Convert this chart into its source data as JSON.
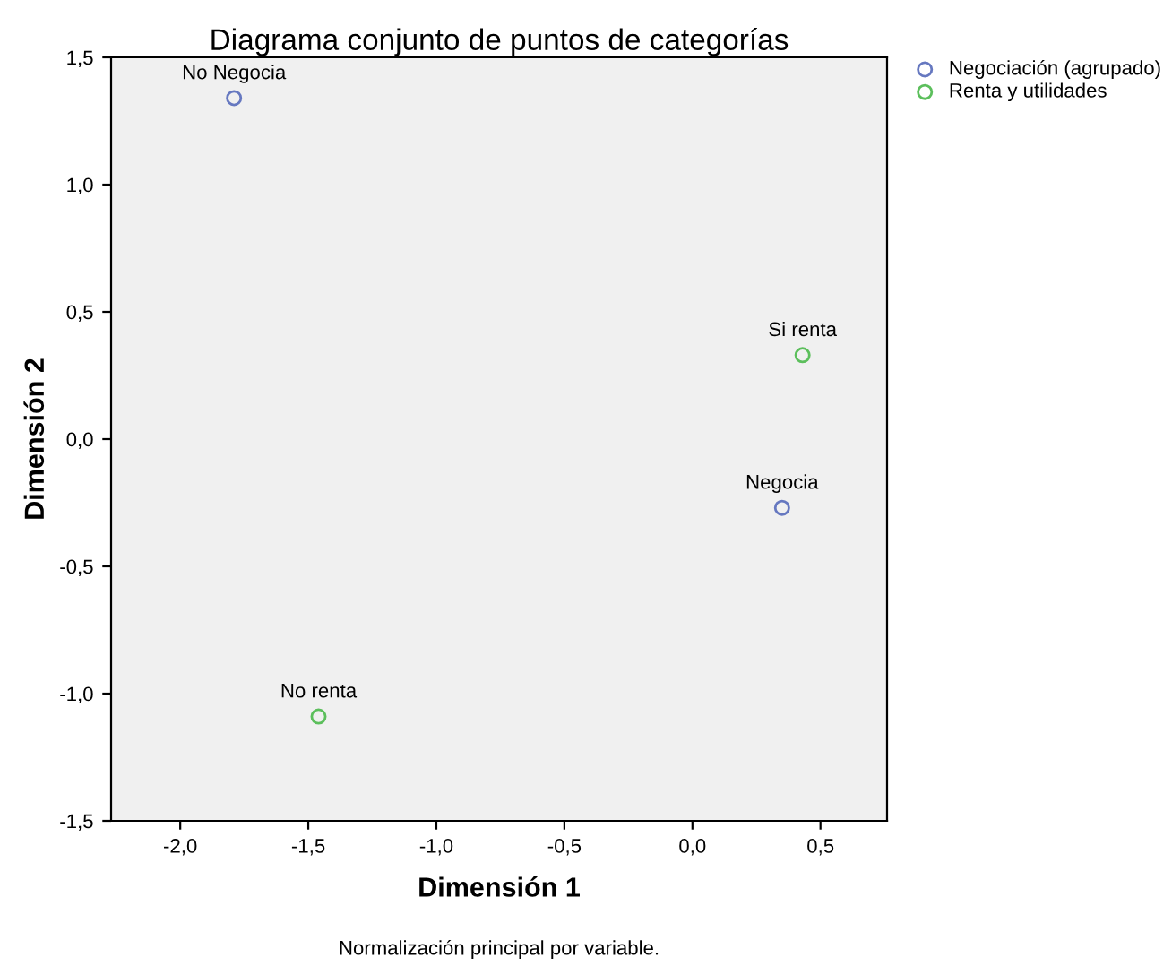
{
  "chart_data": {
    "type": "scatter",
    "title": "Diagrama conjunto de puntos de categorías",
    "xlabel": "Dimensión 1",
    "ylabel": "Dimensión 2",
    "series": [
      {
        "name": "Negociación (agrupado)",
        "color": "#6678c0",
        "x": [
          -1.79,
          0.35
        ],
        "values": [
          1.34,
          -0.27
        ]
      },
      {
        "name": "Renta y utilidades",
        "color": "#5cbf5c",
        "x": [
          0.43,
          -1.46
        ],
        "values": [
          0.33,
          -1.09
        ]
      }
    ],
    "annotations": [
      {
        "text": "No Negocia",
        "x": -1.79,
        "y": 1.34
      },
      {
        "text": "Negocia",
        "x": 0.35,
        "y": -0.27
      },
      {
        "text": "Si renta",
        "x": 0.43,
        "y": 0.33
      },
      {
        "text": "No renta",
        "x": -1.46,
        "y": -1.09
      },
      "Normalización principal por variable."
    ],
    "xlim": [
      -2.27,
      0.76
    ],
    "ylim": [
      -1.5,
      1.5
    ],
    "xticks": [
      {
        "value": -2.0,
        "label": "-2,0"
      },
      {
        "value": -1.5,
        "label": "-1,5"
      },
      {
        "value": -1.0,
        "label": "-1,0"
      },
      {
        "value": -0.5,
        "label": "-0,5"
      },
      {
        "value": 0.0,
        "label": "0,0"
      },
      {
        "value": 0.5,
        "label": "0,5"
      }
    ],
    "yticks": [
      {
        "value": -1.5,
        "label": "-1,5"
      },
      {
        "value": -1.0,
        "label": "-1,0"
      },
      {
        "value": -0.5,
        "label": "-0,5"
      },
      {
        "value": 0.0,
        "label": "0,0"
      },
      {
        "value": 0.5,
        "label": "0,5"
      },
      {
        "value": 1.0,
        "label": "1,0"
      },
      {
        "value": 1.5,
        "label": "1,5"
      }
    ],
    "marker": "circle",
    "grid": false,
    "legend": "top right"
  }
}
